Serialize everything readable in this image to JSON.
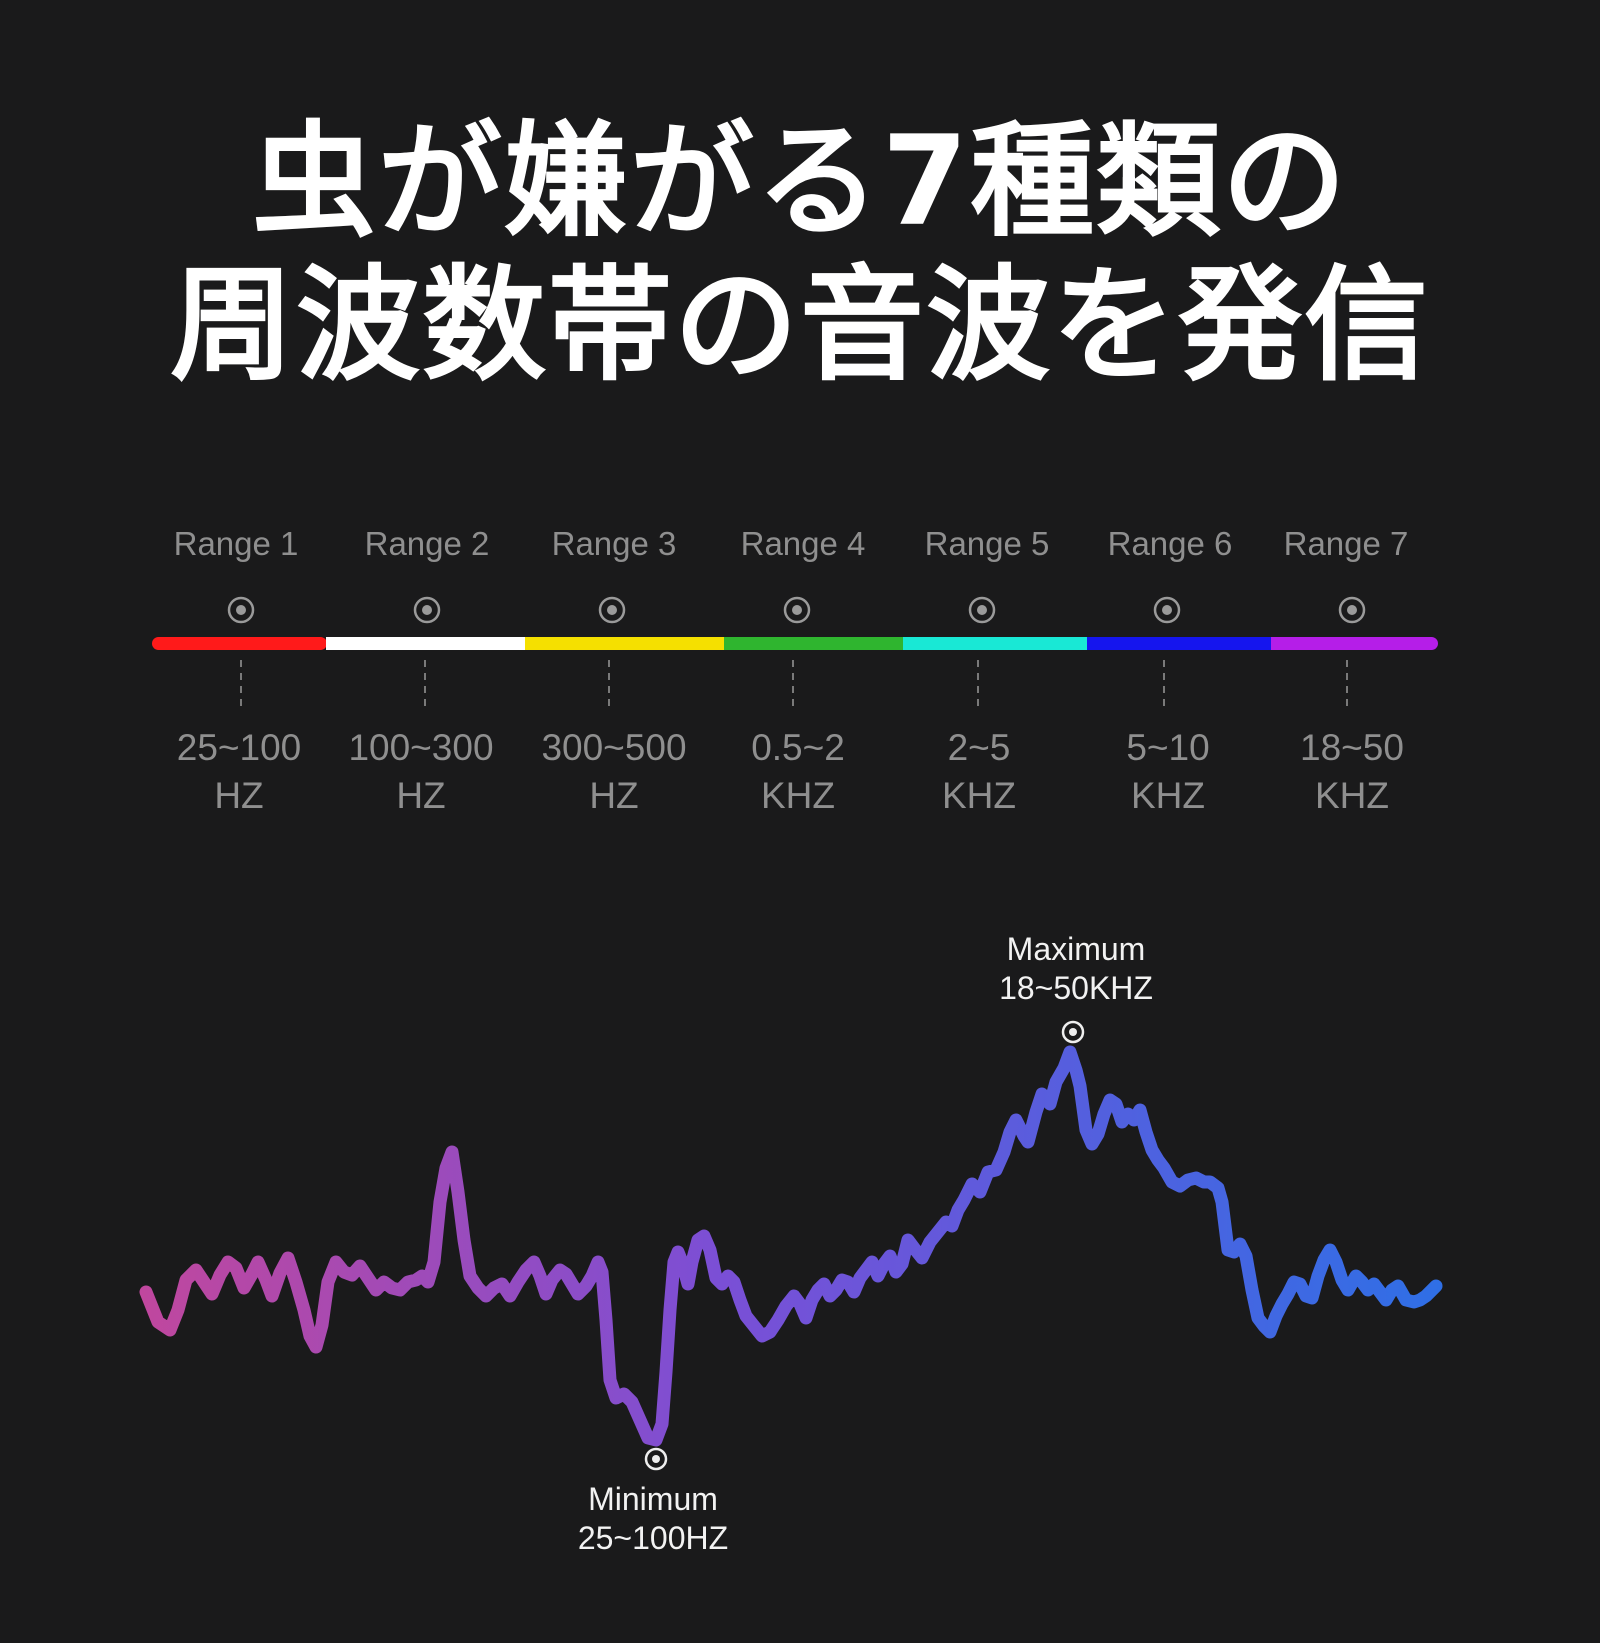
{
  "headline": {
    "line1": "虫が嫌がる7種類の",
    "line2": "周波数帯の音波を発信"
  },
  "ranges": [
    {
      "label": "Range 1",
      "freq": "25~100",
      "unit": "HZ",
      "color": "#ff1a1a"
    },
    {
      "label": "Range 2",
      "freq": "100~300",
      "unit": "HZ",
      "color": "#ffffff"
    },
    {
      "label": "Range 3",
      "freq": "300~500",
      "unit": "HZ",
      "color": "#f5e000"
    },
    {
      "label": "Range 4",
      "freq": "0.5~2",
      "unit": "KHZ",
      "color": "#2fb52f"
    },
    {
      "label": "Range 5",
      "freq": "2~5",
      "unit": "KHZ",
      "color": "#19e8d5"
    },
    {
      "label": "Range 6",
      "freq": "5~10",
      "unit": "KHZ",
      "color": "#1515ee"
    },
    {
      "label": "Range 7",
      "freq": "18~50",
      "unit": "KHZ",
      "color": "#b51ee8"
    }
  ],
  "annotations": {
    "minimum": {
      "title": "Minimum",
      "value": "25~100HZ"
    },
    "maximum": {
      "title": "Maximum",
      "value": "18~50KHZ"
    }
  },
  "wave": {
    "gradient_start": "#c0479e",
    "gradient_mid": "#7a4fd6",
    "gradient_end": "#2f6fe6"
  }
}
